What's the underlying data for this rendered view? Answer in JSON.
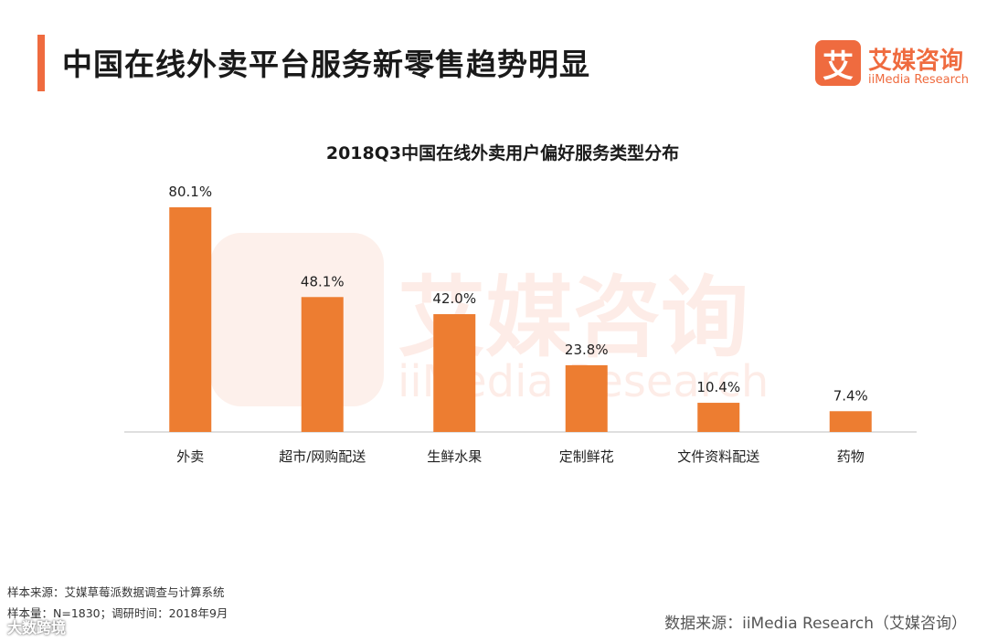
{
  "header": {
    "title": "中国在线外卖平台服务新零售趋势明显",
    "logo_mark": "艾",
    "logo_cn": "艾媒咨询",
    "logo_en": "iiMedia Research"
  },
  "watermark": {
    "mark": "艾",
    "cn": "艾媒咨询",
    "en": "iiMedia Research"
  },
  "chart_data": {
    "type": "bar",
    "title": "2018Q3中国在线外卖用户偏好服务类型分布",
    "categories": [
      "外卖",
      "超市/网购配送",
      "生鲜水果",
      "定制鲜花",
      "文件资料配送",
      "药物"
    ],
    "values": [
      80.1,
      48.1,
      42.0,
      23.8,
      10.4,
      7.4
    ],
    "value_labels": [
      "80.1%",
      "48.1%",
      "42.0%",
      "23.8%",
      "10.4%",
      "7.4%"
    ],
    "unit": "%",
    "ylim": [
      0,
      80.1
    ],
    "bar_color": "#ed7d31",
    "grid": false,
    "legend": "none"
  },
  "footer": {
    "note1": "样本来源：艾媒草莓派数据调查与计算系统",
    "note2": "样本量：N=1830；调研时间：2018年9月",
    "source": "数据来源：iiMedia Research（艾媒咨询）",
    "badge": "大数跨境"
  },
  "colors": {
    "accent": "#ef6b3f",
    "bar": "#ed7d31",
    "axis": "#bfbfbf"
  }
}
